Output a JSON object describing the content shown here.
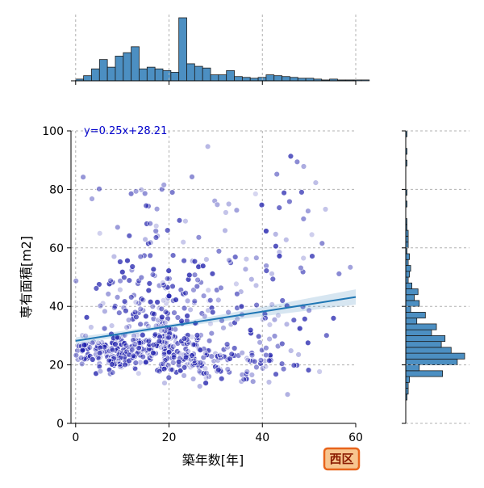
{
  "chart_data": {
    "type": "scatter",
    "xlabel": "築年数[年]",
    "ylabel": "専有面積[m2]",
    "xlim": [
      -1,
      60
    ],
    "ylim": [
      0,
      100
    ],
    "x_ticks": [
      0,
      20,
      40,
      60
    ],
    "y_ticks": [
      0,
      20,
      40,
      60,
      80,
      100
    ],
    "grid": true,
    "regression": {
      "label": "y=0.25x+28.21",
      "slope": 0.25,
      "intercept": 28.21,
      "color": "#1f77b4"
    },
    "badge": "西区",
    "point_color": "#1a1aaa",
    "hist_color": "#4c8fc2",
    "x_hist": {
      "bin_start": 0,
      "bin_width": 1.7,
      "counts": [
        2,
        6,
        14,
        25,
        16,
        29,
        33,
        40,
        14,
        16,
        14,
        12,
        10,
        74,
        20,
        17,
        15,
        7,
        7,
        12,
        5,
        4,
        3,
        4,
        7,
        6,
        5,
        4,
        3,
        3,
        2,
        1,
        2,
        1,
        1,
        1,
        1
      ]
    },
    "y_hist": {
      "bin_start": 0,
      "bin_width": 2,
      "counts": [
        0,
        0,
        0,
        0,
        1,
        2,
        2,
        3,
        30,
        11,
        42,
        48,
        37,
        29,
        32,
        21,
        25,
        9,
        16,
        4,
        11,
        7,
        10,
        5,
        2,
        3,
        4,
        2,
        3,
        1,
        2,
        2,
        2,
        1,
        1,
        0,
        0,
        1,
        0,
        1,
        0,
        0,
        0,
        0,
        1,
        0,
        1,
        0,
        0,
        1
      ]
    },
    "series": [
      {
        "clusters": [
          {
            "cx": 2,
            "cy": 24,
            "sx": 1.5,
            "sy": 3,
            "n": 30
          },
          {
            "cx": 6,
            "cy": 23,
            "sx": 2,
            "sy": 3,
            "n": 50
          },
          {
            "cx": 10,
            "cy": 24,
            "sx": 2,
            "sy": 3,
            "n": 60
          },
          {
            "cx": 14,
            "cy": 25,
            "sx": 2,
            "sy": 3,
            "n": 60
          },
          {
            "cx": 19,
            "cy": 27,
            "sx": 1.5,
            "sy": 6,
            "n": 90
          },
          {
            "cx": 24,
            "cy": 24,
            "sx": 2,
            "sy": 4,
            "n": 50
          },
          {
            "cx": 28,
            "cy": 21,
            "sx": 2.5,
            "sy": 3,
            "n": 35
          },
          {
            "cx": 35,
            "cy": 20,
            "sx": 4,
            "sy": 4,
            "n": 35
          },
          {
            "cx": 45,
            "cy": 22,
            "sx": 6,
            "sy": 5,
            "n": 25
          },
          {
            "cx": 8,
            "cy": 40,
            "sx": 5,
            "sy": 6,
            "n": 40
          },
          {
            "cx": 18,
            "cy": 42,
            "sx": 6,
            "sy": 9,
            "n": 60
          },
          {
            "cx": 28,
            "cy": 40,
            "sx": 6,
            "sy": 9,
            "n": 40
          },
          {
            "cx": 40,
            "cy": 40,
            "sx": 8,
            "sy": 12,
            "n": 45
          },
          {
            "cx": 15,
            "cy": 65,
            "sx": 8,
            "sy": 10,
            "n": 40
          },
          {
            "cx": 35,
            "cy": 62,
            "sx": 10,
            "sy": 12,
            "n": 30
          },
          {
            "cx": 45,
            "cy": 80,
            "sx": 8,
            "sy": 10,
            "n": 14
          }
        ]
      }
    ]
  }
}
